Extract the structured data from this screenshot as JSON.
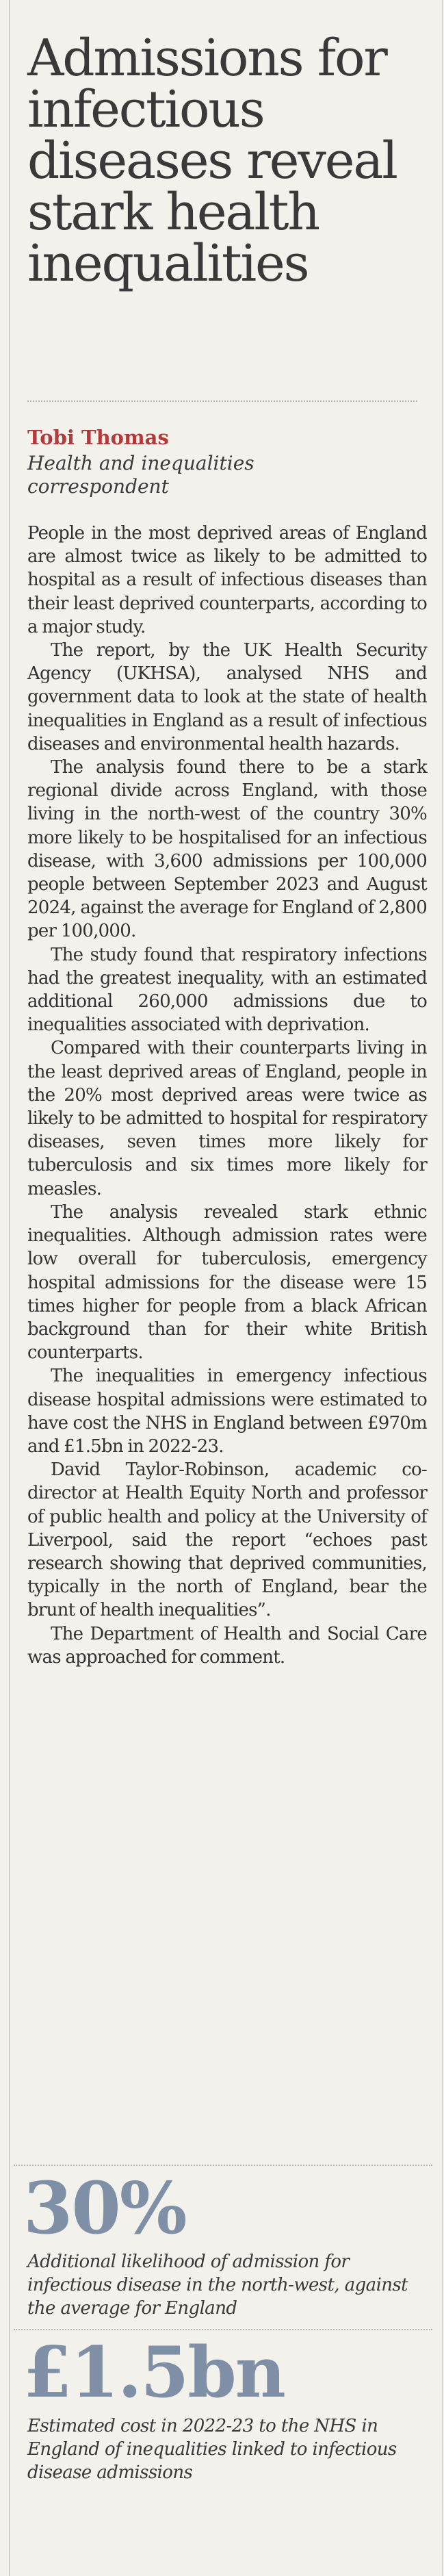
{
  "article": {
    "headline": "Admissions for infectious diseases reveal stark health inequalities",
    "author": "Tobi Thomas",
    "author_role": "Health and inequalities correspondent",
    "paragraphs": [
      "People in the most deprived areas of England are almost twice as likely to be admitted to hospital as a result of infectious diseases than their least deprived counterparts, according to a major study.",
      "The report, by the UK Health Security Agency (UKHSA), analysed NHS and government data to look at the state of health inequalities in England as a result of infectious diseases and environmental health hazards.",
      "The analysis found there to be a stark regional divide across England, with those living in the north-west of the country 30% more likely to be hospitalised for an infectious disease, with 3,600 admissions per 100,000 people between September 2023 and August 2024, against the average for England of 2,800 per 100,000.",
      "The study found that respiratory infections had the greatest inequality, with an estimated additional 260,000 admissions due to inequalities associated with deprivation.",
      "Compared with their counterparts living in the least deprived areas of England, people in the 20% most deprived areas were twice as likely to be admitted to hospital for respiratory diseases, seven times more likely for tuberculosis and six times more likely for measles.",
      "The analysis revealed stark ethnic inequalities. Although admission rates were low overall for tuberculosis, emergency hospital admissions for the disease were 15 times higher for people from a black African background than for their white British counterparts.",
      "The inequalities in emergency infectious disease hospital admissions were estimated to have cost the NHS in England between £970m and £1.5bn in 2022-23.",
      "David Taylor-Robinson, academic co-director at Health Equity North and professor of public health and policy at the University of Liverpool, said the report “echoes past research showing that deprived communities, typically in the north of England, bear the brunt of health inequalities”.",
      "The Department of Health and Social Care was approached for comment."
    ]
  },
  "stats": [
    {
      "value": "30%",
      "caption": "Additional likelihood of admission for infectious disease in the north-west, against the average for England"
    },
    {
      "value": "£1.5bn",
      "caption": "Estimated cost in 2022-23 to the NHS in England of inequalities linked to infectious disease admissions"
    }
  ],
  "colors": {
    "byline": "#b33a3a",
    "stat_figure": "#7e8fa6"
  }
}
